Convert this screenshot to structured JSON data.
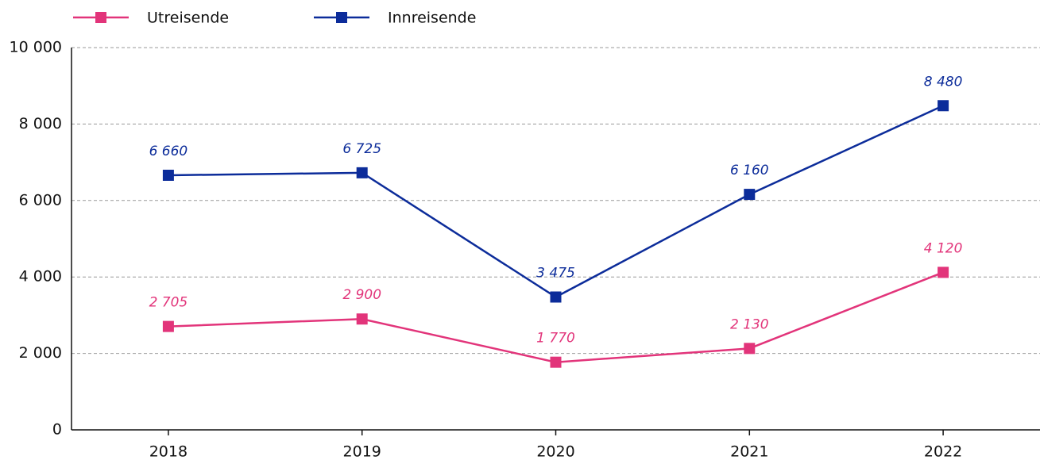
{
  "chart_data": {
    "type": "line",
    "categories": [
      "2018",
      "2019",
      "2020",
      "2021",
      "2022"
    ],
    "series": [
      {
        "name": "Utreisende",
        "color": "#e2347a",
        "values": [
          2705,
          2900,
          1770,
          2130,
          4120
        ],
        "value_labels": [
          "2 705",
          "2 900",
          "1 770",
          "2 130",
          "4 120"
        ]
      },
      {
        "name": "Innreisende",
        "color": "#0c2c9a",
        "values": [
          6660,
          6725,
          3475,
          6160,
          8480
        ],
        "value_labels": [
          "6 660",
          "6 725",
          "3 475",
          "6 160",
          "8 480"
        ]
      }
    ],
    "ylim": [
      0,
      10000
    ],
    "yticks": [
      0,
      {
        "value": 2000,
        "label": "2 000"
      },
      {
        "value": 4000,
        "label": "4 000"
      },
      {
        "value": 6000,
        "label": "6 000"
      },
      {
        "value": 8000,
        "label": "8 000"
      },
      {
        "value": 10000,
        "label": "10 000"
      }
    ],
    "grid": true,
    "legend": "top"
  }
}
